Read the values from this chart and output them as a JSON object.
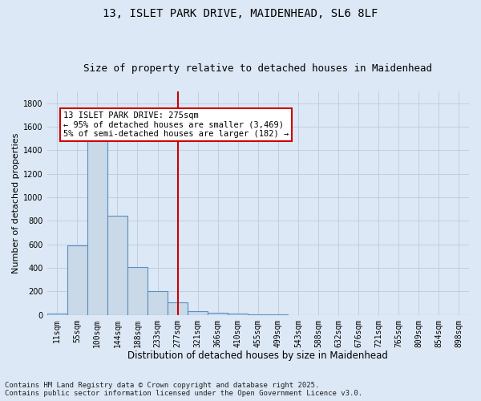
{
  "title1": "13, ISLET PARK DRIVE, MAIDENHEAD, SL6 8LF",
  "title2": "Size of property relative to detached houses in Maidenhead",
  "xlabel": "Distribution of detached houses by size in Maidenhead",
  "ylabel": "Number of detached properties",
  "categories": [
    "11sqm",
    "55sqm",
    "100sqm",
    "144sqm",
    "188sqm",
    "233sqm",
    "277sqm",
    "321sqm",
    "366sqm",
    "410sqm",
    "455sqm",
    "499sqm",
    "543sqm",
    "588sqm",
    "632sqm",
    "676sqm",
    "721sqm",
    "765sqm",
    "809sqm",
    "854sqm",
    "898sqm"
  ],
  "values": [
    10,
    590,
    1490,
    840,
    410,
    200,
    105,
    30,
    20,
    15,
    2,
    2,
    1,
    1,
    1,
    1,
    1,
    1,
    1,
    1,
    1
  ],
  "bar_color": "#c9d9e8",
  "bar_edge_color": "#5a8fc2",
  "vline_x_idx": 6,
  "vline_color": "#cc0000",
  "annotation_text": "13 ISLET PARK DRIVE: 275sqm\n← 95% of detached houses are smaller (3,469)\n5% of semi-detached houses are larger (182) →",
  "annotation_box_color": "#cc0000",
  "annotation_bg": "#ffffff",
  "ylim": [
    0,
    1900
  ],
  "yticks": [
    0,
    200,
    400,
    600,
    800,
    1000,
    1200,
    1400,
    1600,
    1800
  ],
  "grid_color": "#c0cfe0",
  "background_color": "#dce8f5",
  "footer": "Contains HM Land Registry data © Crown copyright and database right 2025.\nContains public sector information licensed under the Open Government Licence v3.0.",
  "title1_fontsize": 10,
  "title2_fontsize": 9,
  "xlabel_fontsize": 8.5,
  "ylabel_fontsize": 8,
  "tick_fontsize": 7,
  "footer_fontsize": 6.5,
  "ann_fontsize": 7.5
}
